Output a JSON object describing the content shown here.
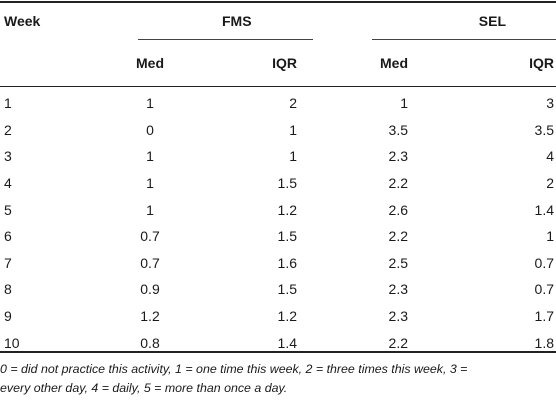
{
  "table": {
    "headers": {
      "week": "Week",
      "group_fms": "FMS",
      "group_sel": "SEL",
      "fms_med": "Med",
      "fms_iqr": "IQR",
      "sel_med": "Med",
      "sel_iqr": "IQR"
    },
    "rows": [
      {
        "week": "1",
        "fms_med": "1",
        "fms_iqr": "2",
        "sel_med": "1",
        "sel_iqr": "3"
      },
      {
        "week": "2",
        "fms_med": "0",
        "fms_iqr": "1",
        "sel_med": "3.5",
        "sel_iqr": "3.5"
      },
      {
        "week": "3",
        "fms_med": "1",
        "fms_iqr": "1",
        "sel_med": "2.3",
        "sel_iqr": "4"
      },
      {
        "week": "4",
        "fms_med": "1",
        "fms_iqr": "1.5",
        "sel_med": "2.2",
        "sel_iqr": "2"
      },
      {
        "week": "5",
        "fms_med": "1",
        "fms_iqr": "1.2",
        "sel_med": "2.6",
        "sel_iqr": "1.4"
      },
      {
        "week": "6",
        "fms_med": "0.7",
        "fms_iqr": "1.5",
        "sel_med": "2.2",
        "sel_iqr": "1"
      },
      {
        "week": "7",
        "fms_med": "0.7",
        "fms_iqr": "1.6",
        "sel_med": "2.5",
        "sel_iqr": "0.7"
      },
      {
        "week": "8",
        "fms_med": "0.9",
        "fms_iqr": "1.5",
        "sel_med": "2.3",
        "sel_iqr": "0.7"
      },
      {
        "week": "9",
        "fms_med": "1.2",
        "fms_iqr": "1.2",
        "sel_med": "2.3",
        "sel_iqr": "1.7"
      },
      {
        "week": "10",
        "fms_med": "0.8",
        "fms_iqr": "1.4",
        "sel_med": "2.2",
        "sel_iqr": "1.8"
      }
    ]
  },
  "footnote": {
    "line1": "0 = did not practice this activity, 1 = one time this week, 2 = three times this week, 3 =",
    "line2": "every other day, 4 = daily, 5 = more than once a day."
  }
}
